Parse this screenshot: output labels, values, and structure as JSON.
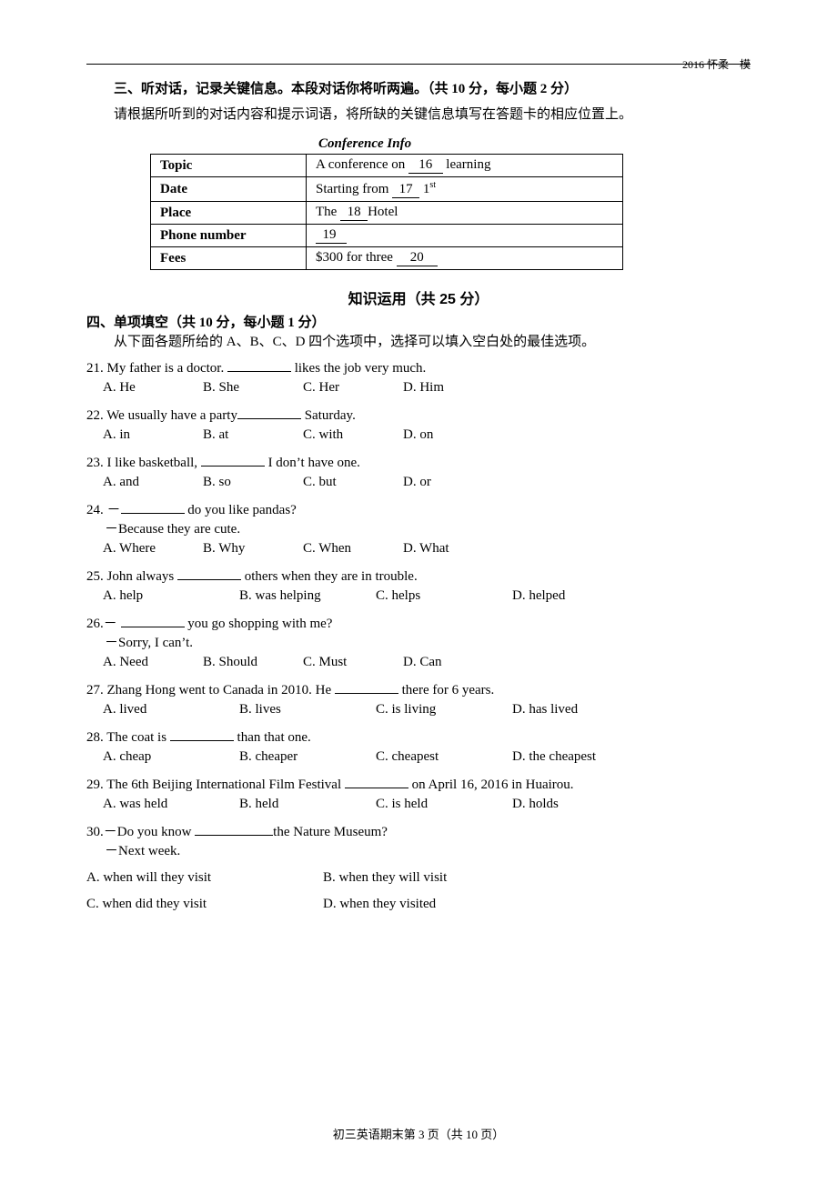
{
  "page": {
    "header_right": "2016 怀柔一模",
    "footer": "初三英语期末第 3 页（共 10 页）"
  },
  "section3": {
    "title": "三、听对话，记录关键信息。本段对话你将听两遍。（共 10 分，每小题 2 分）",
    "instruction": "请根据所听到的对话内容和提示词语，将所缺的关键信息填写在答题卡的相应位置上。",
    "conf_title": "Conference Info",
    "table": {
      "rows": [
        {
          "label": "Topic",
          "pre": "A conference on ",
          "blank_pre": "   ",
          "num": "16",
          "blank_post": "   ",
          "post": " learning"
        },
        {
          "label": "Date",
          "pre": "Starting from ",
          "blank_pre": "  ",
          "num": "17",
          "blank_post": "  ",
          "post": " 1",
          "sup": "st"
        },
        {
          "label": "Place",
          "pre": "The ",
          "blank_pre": "  ",
          "num": "18",
          "blank_post": "  ",
          "post": "Hotel"
        },
        {
          "label": "Phone number",
          "pre": "",
          "blank_pre": "  ",
          "num": "19",
          "blank_post": "   ",
          "post": ""
        },
        {
          "label": "Fees",
          "pre": "$300 for three ",
          "blank_pre": "    ",
          "num": "20",
          "blank_post": "    ",
          "post": ""
        }
      ]
    }
  },
  "knowledge": {
    "heading": "知识运用（共 25 分）"
  },
  "section4": {
    "title": "四、单项填空（共 10 分，每小题 1 分）",
    "instruction": "从下面各题所给的 A、B、C、D 四个选项中，选择可以填入空白处的最佳选项。",
    "questions": [
      {
        "n": "21",
        "stem_pre": "21. My father is a doctor. ",
        "stem_post": " likes the job very much.",
        "gap": "gap",
        "opts": [
          "A. He",
          "B. She",
          "C. Her",
          "D. Him"
        ]
      },
      {
        "n": "22",
        "stem_pre": "22. We usually have a party",
        "stem_post": " Saturday.",
        "gap": "gap",
        "opts": [
          "A. in",
          "B. at",
          "C. with",
          "D. on"
        ]
      },
      {
        "n": "23",
        "stem_pre": "23. I like basketball, ",
        "stem_post": " I don’t have one.",
        "gap": "gap",
        "opts": [
          "A. and",
          "B. so",
          "C. but",
          "D. or"
        ]
      },
      {
        "n": "24",
        "line1_pre": "24. －",
        "line1_post": " do you like pandas?",
        "gap": "gap",
        "line2": "－Because they are cute.",
        "opts": [
          "A. Where",
          "B. Why",
          "C. When",
          "D. What"
        ]
      },
      {
        "n": "25",
        "stem_pre": "25. John always ",
        "stem_post": " others when they are in trouble.",
        "gap": "gap",
        "opts": [
          "A. help",
          "B. was helping",
          "C. helps",
          "D. helped"
        ],
        "wide": true
      },
      {
        "n": "26",
        "line1_pre": "26.－ ",
        "line1_post": " you go shopping with me?",
        "gap": "gap",
        "line2": "－Sorry, I can’t.",
        "opts": [
          "A. Need",
          "B. Should",
          "C. Must",
          "D. Can"
        ]
      },
      {
        "n": "27",
        "stem_pre": "27. Zhang Hong went to Canada in 2010. He ",
        "stem_post": " there for 6 years.",
        "gap": "gap",
        "opts": [
          "A. lived",
          "B. lives",
          "C. is living",
          "D. has lived"
        ],
        "wide": true
      },
      {
        "n": "28",
        "stem_pre": "28. The coat is ",
        "stem_post": " than that one.",
        "gap": "gap",
        "opts": [
          "A. cheap",
          "B. cheaper",
          "C. cheapest",
          "D. the cheapest"
        ],
        "wide": true
      },
      {
        "n": "29",
        "stem_pre": "29. The 6th Beijing International Film Festival ",
        "stem_post": " on April 16, 2016 in Huairou.",
        "gap": "gap",
        "opts": [
          "A. was held",
          "B. held",
          "C. is held",
          "D. holds"
        ],
        "wide": true
      },
      {
        "n": "30",
        "line1_pre": "30.－Do you know ",
        "line1_post": "the Nature Museum?",
        "gap": "gap-l",
        "line2": "－Next week.",
        "opts_2col": {
          "row1": [
            "A. when will they visit",
            "B. when they will visit"
          ],
          "row2": [
            "C. when did they visit",
            "D. when they visited"
          ]
        }
      }
    ]
  }
}
